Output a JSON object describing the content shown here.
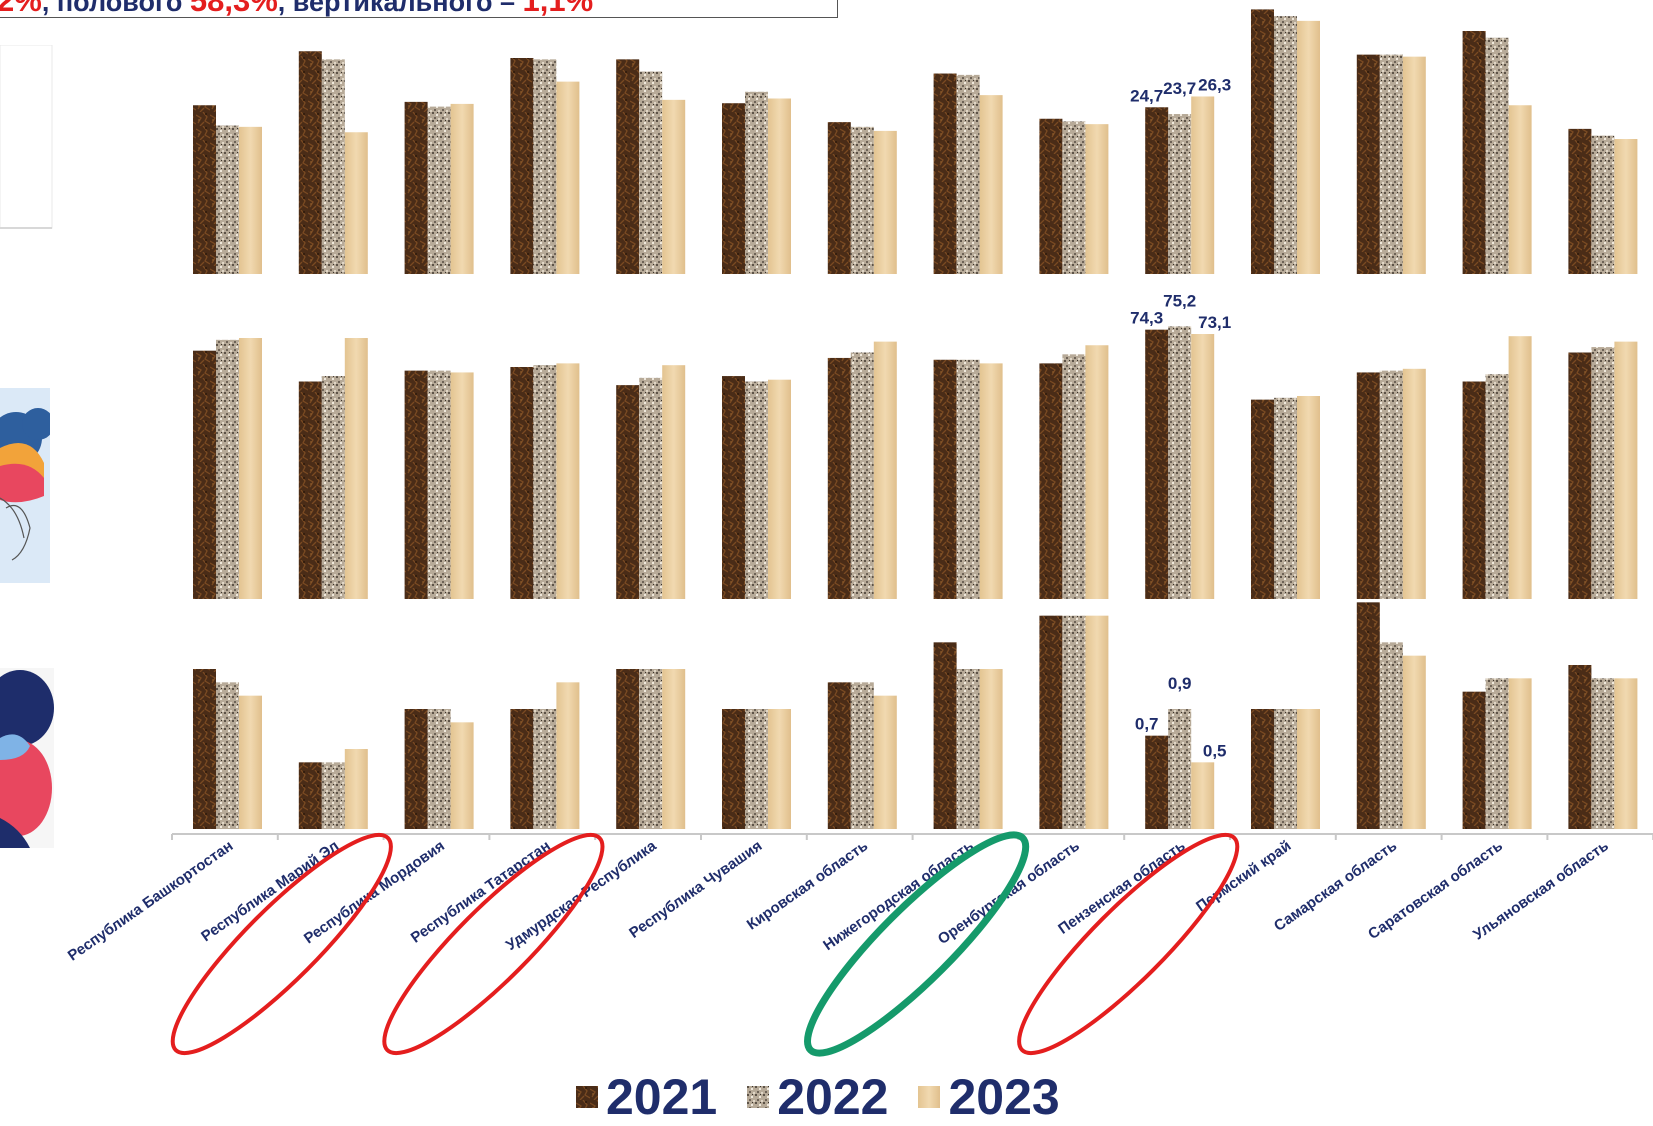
{
  "header": {
    "parts": [
      {
        "text": "2%",
        "red": true
      },
      {
        "text": ", полового ",
        "red": false
      },
      {
        "text": "58,3%",
        "red": true
      },
      {
        "text": ", вертикального – ",
        "red": false
      },
      {
        "text": "1,1%",
        "red": true
      }
    ]
  },
  "colors": {
    "s2021": "#4a2c17",
    "s2022": "#b7aa98",
    "s2023": "#e6c89a",
    "text": "#1f2d6b",
    "circle_red": "#e41e1e",
    "circle_green": "#159a6b"
  },
  "chart_data": {
    "type": "bar",
    "categories": [
      "Республика Башкортостан",
      "Республика Марий Эл",
      "Республика Мордовия",
      "Республика Татарстан",
      "Удмурдская Республика",
      "Республика Чувашия",
      "Кировская область",
      "Нижегородская область",
      "Оренбургская область",
      "Пензенская область",
      "Пермский край",
      "Самарская область",
      "Саратовская область",
      "Ульяновская область"
    ],
    "legend": [
      "2021",
      "2022",
      "2023"
    ],
    "panels": [
      {
        "name": "top",
        "ylim": [
          0,
          40
        ],
        "series": [
          {
            "name": "2021",
            "values": [
              25.0,
              33.0,
              25.5,
              32.0,
              31.8,
              25.3,
              22.5,
              29.7,
              23.0,
              24.7,
              39.2,
              32.5,
              36.0,
              21.5
            ]
          },
          {
            "name": "2022",
            "values": [
              22.0,
              31.8,
              24.8,
              31.8,
              30.0,
              27.0,
              21.8,
              29.5,
              22.6,
              23.7,
              38.2,
              32.5,
              35.0,
              20.5
            ]
          },
          {
            "name": "2023",
            "values": [
              21.8,
              21.0,
              25.2,
              28.5,
              25.8,
              26.0,
              21.2,
              26.5,
              22.2,
              26.3,
              37.5,
              32.2,
              25.0,
              20.0
            ]
          }
        ],
        "data_labels": {
          "category_index": 9,
          "texts": [
            "24,7",
            "23,7",
            "26,3"
          ]
        }
      },
      {
        "name": "middle",
        "ylim": [
          0,
          80
        ],
        "series": [
          {
            "name": "2021",
            "values": [
              68.5,
              60.0,
              63.0,
              64.0,
              59.0,
              61.5,
              66.5,
              66.0,
              65.0,
              74.3,
              55.0,
              62.5,
              60.0,
              68.0
            ]
          },
          {
            "name": "2022",
            "values": [
              71.5,
              61.5,
              63.0,
              64.5,
              61.0,
              60.0,
              68.0,
              66.0,
              67.5,
              75.2,
              55.5,
              63.0,
              62.0,
              69.5
            ]
          },
          {
            "name": "2023",
            "values": [
              72.0,
              72.0,
              62.5,
              65.0,
              64.5,
              60.5,
              71.0,
              65.0,
              70.0,
              73.1,
              56.0,
              63.5,
              72.5,
              71.0
            ]
          }
        ],
        "data_labels": {
          "category_index": 9,
          "texts": [
            "74,3",
            "75,2",
            "73,1"
          ]
        }
      },
      {
        "name": "bottom",
        "ylim": [
          0,
          1.8
        ],
        "series": [
          {
            "name": "2021",
            "values": [
              1.2,
              0.5,
              0.9,
              0.9,
              1.2,
              0.9,
              1.1,
              1.4,
              1.6,
              0.7,
              0.9,
              1.7,
              1.03,
              1.23
            ]
          },
          {
            "name": "2022",
            "values": [
              1.1,
              0.5,
              0.9,
              0.9,
              1.2,
              0.9,
              1.1,
              1.2,
              1.6,
              0.9,
              0.9,
              1.4,
              1.13,
              1.13
            ]
          },
          {
            "name": "2023",
            "values": [
              1.0,
              0.6,
              0.8,
              1.1,
              1.2,
              0.9,
              1.0,
              1.2,
              1.6,
              0.5,
              0.9,
              1.3,
              1.13,
              1.13
            ]
          }
        ],
        "data_labels": {
          "category_index": 9,
          "texts": [
            "0,7",
            "0,9",
            "0,5"
          ]
        }
      }
    ],
    "highlights": [
      {
        "category_index": 1,
        "color": "red"
      },
      {
        "category_index": 3,
        "color": "red"
      },
      {
        "category_index": 7,
        "color": "green"
      },
      {
        "category_index": 9,
        "color": "red"
      }
    ]
  }
}
